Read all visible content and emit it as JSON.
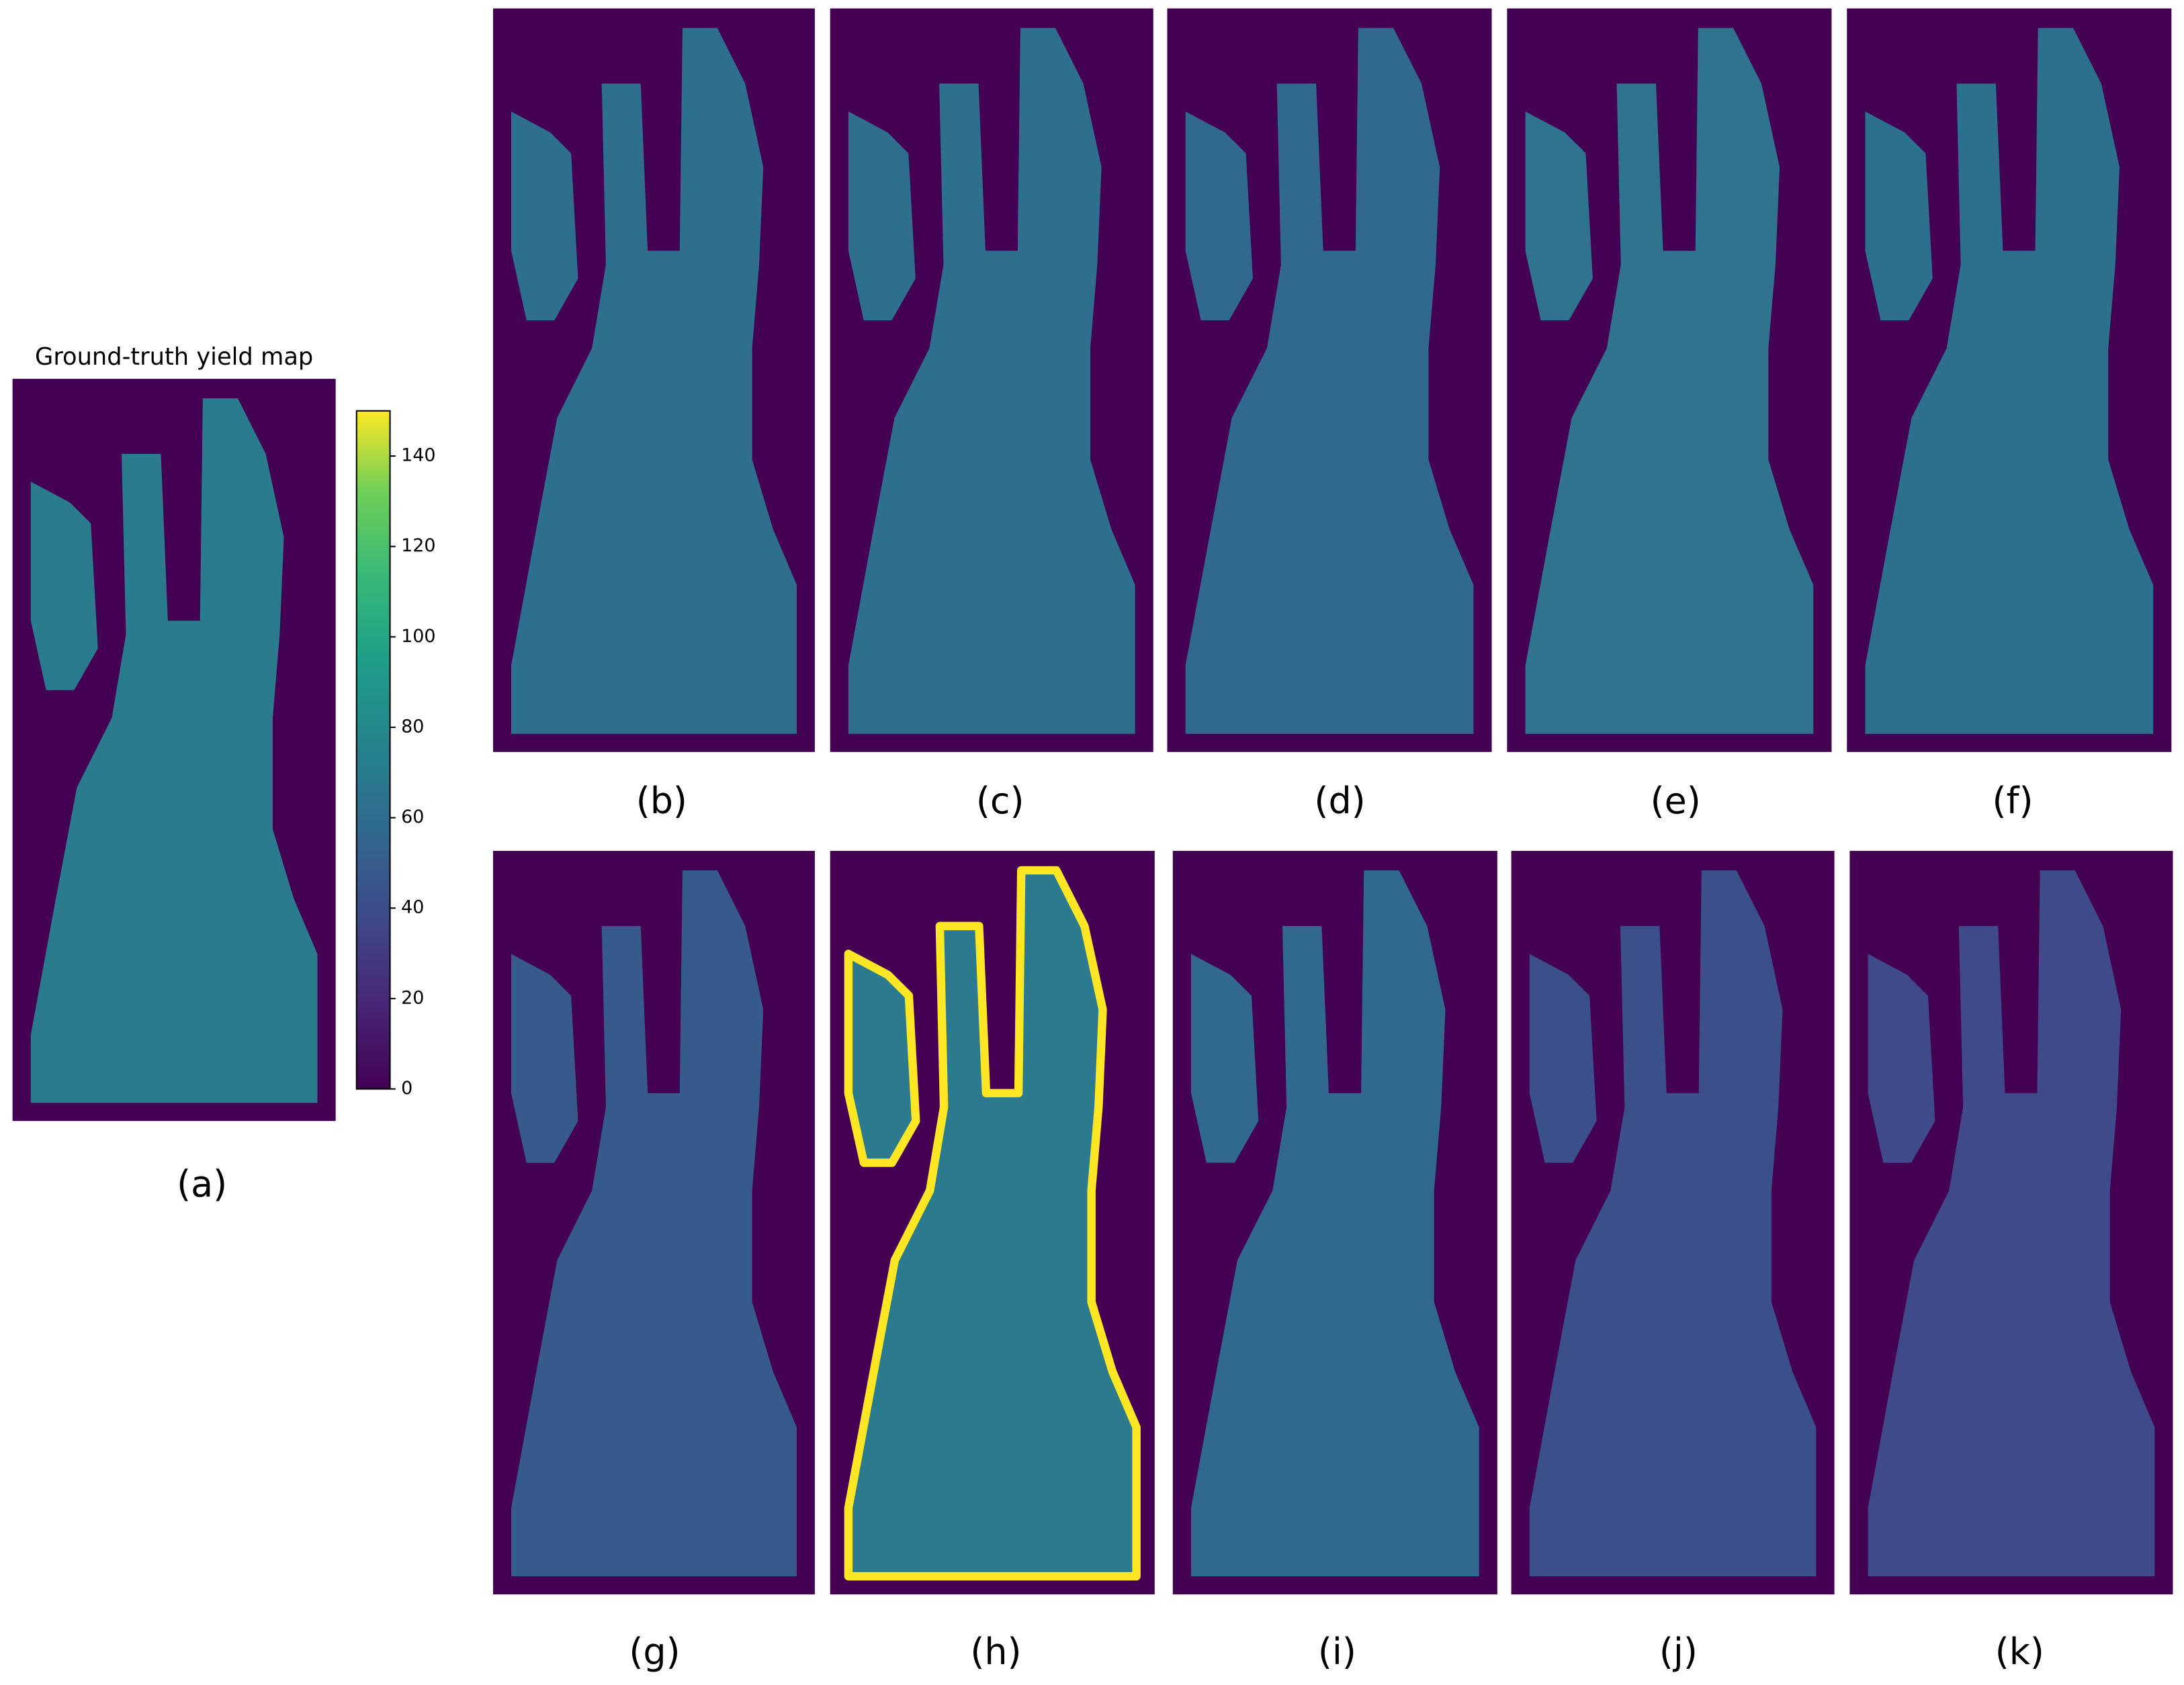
{
  "chart_data": {
    "type": "heatmap",
    "title": "Ground-truth yield map",
    "colormap": "viridis",
    "ylim": [
      0,
      150
    ],
    "yticks": [
      0,
      20,
      40,
      60,
      80,
      100,
      120,
      140
    ],
    "panel_labels": [
      "(a)",
      "(b)",
      "(c)",
      "(d)",
      "(e)",
      "(f)",
      "(g)",
      "(h)",
      "(i)",
      "(j)",
      "(k)"
    ]
  }
}
